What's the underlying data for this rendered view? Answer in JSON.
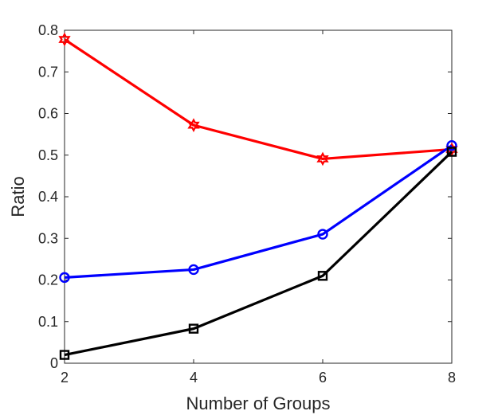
{
  "chart_data": {
    "type": "line",
    "title": "",
    "xlabel": "Number of Groups",
    "ylabel": "Ratio",
    "x": [
      2,
      4,
      6,
      8
    ],
    "xlim": [
      2,
      8
    ],
    "ylim": [
      0,
      0.8
    ],
    "xticks": [
      "2",
      "4",
      "6",
      "8"
    ],
    "yticks": [
      "0",
      "0.1",
      "0.2",
      "0.3",
      "0.4",
      "0.5",
      "0.6",
      "0.7",
      "0.8"
    ],
    "grid": false,
    "legend": "none",
    "series": [
      {
        "color": "#ff0000",
        "marker": "hexagram",
        "values": [
          0.778,
          0.572,
          0.491,
          0.514
        ]
      },
      {
        "color": "#0000ff",
        "marker": "circle",
        "values": [
          0.206,
          0.225,
          0.31,
          0.523
        ]
      },
      {
        "color": "#000000",
        "marker": "square",
        "values": [
          0.02,
          0.083,
          0.21,
          0.508
        ]
      }
    ]
  }
}
